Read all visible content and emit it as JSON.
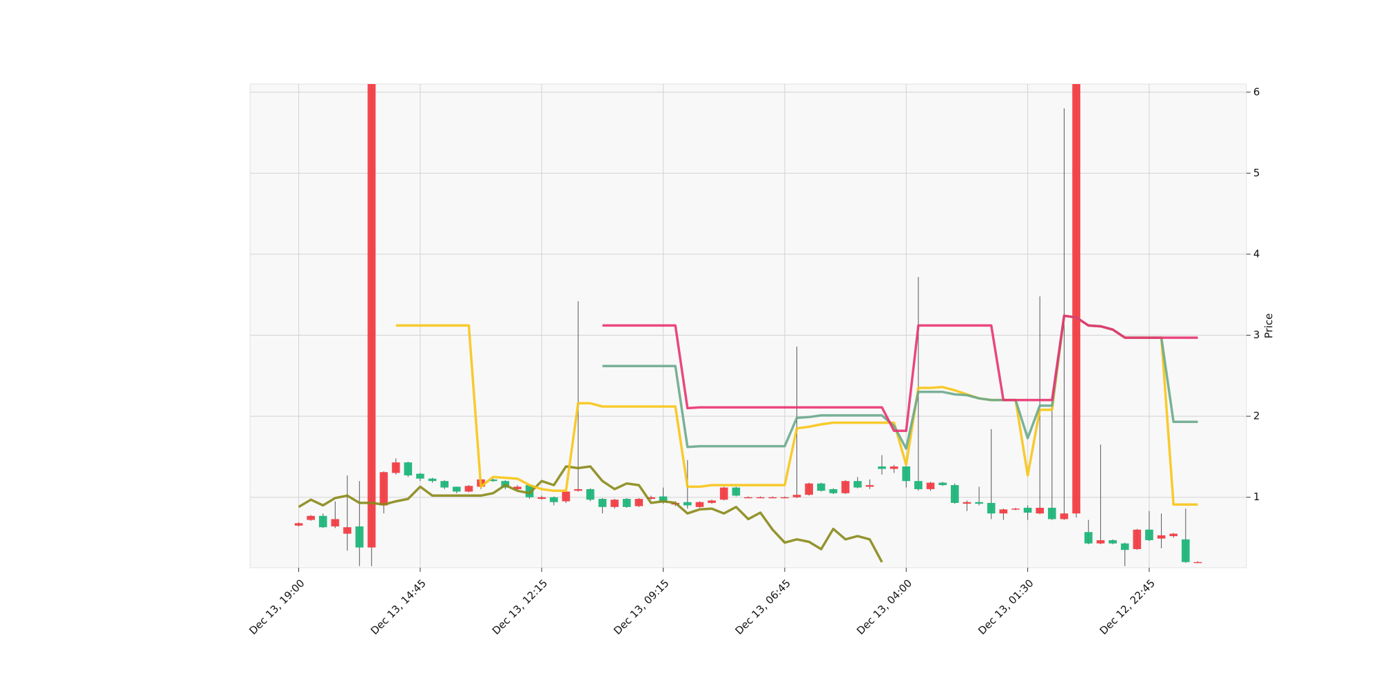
{
  "chart_data": {
    "type": "candlestick",
    "ylabel": "Price",
    "categories": [
      "Dec 13, 19:00",
      null,
      null,
      null,
      null,
      null,
      null,
      null,
      null,
      null,
      "Dec 13, 14:45",
      null,
      null,
      null,
      null,
      null,
      null,
      null,
      null,
      null,
      "Dec 13, 12:15",
      null,
      null,
      null,
      null,
      null,
      null,
      null,
      null,
      null,
      "Dec 13, 09:15",
      null,
      null,
      null,
      null,
      null,
      null,
      null,
      null,
      null,
      "Dec 13, 06:45",
      null,
      null,
      null,
      null,
      null,
      null,
      null,
      null,
      null,
      "Dec 13, 04:00",
      null,
      null,
      null,
      null,
      null,
      null,
      null,
      null,
      null,
      "Dec 13, 01:30",
      null,
      null,
      null,
      null,
      null,
      null,
      null,
      null,
      null,
      "Dec 12, 22:45",
      null,
      null,
      null,
      null
    ],
    "open": [
      0.68,
      0.77,
      0.63,
      0.73,
      0.63,
      0.38,
      8.0,
      1.31,
      1.43,
      1.27,
      1.23,
      1.2,
      1.12,
      1.07,
      1.14,
      1.22,
      1.2,
      1.12,
      1.13,
      1.0,
      1.0,
      0.94,
      1.07,
      1.1,
      0.97,
      0.88,
      0.97,
      0.88,
      0.98,
      1.0,
      0.94,
      0.93,
      0.9,
      0.94,
      0.96,
      1.12,
      1.02,
      1.0,
      1.0,
      1.0,
      1.0,
      1.03,
      1.17,
      1.08,
      1.05,
      1.2,
      1.12,
      1.15,
      1.35,
      1.38,
      1.2,
      1.1,
      1.18,
      1.15,
      0.93,
      0.94,
      0.92,
      0.8,
      0.85,
      0.86,
      0.81,
      0.87,
      0.73,
      0.8,
      8.0,
      0.43,
      0.47,
      0.43,
      0.35,
      0.6,
      0.47,
      0.53,
      0.55,
      0.2,
      0.2
    ],
    "high": [
      0.69,
      0.78,
      0.8,
      0.95,
      1.27,
      1.2,
      8.0,
      1.32,
      1.48,
      1.44,
      1.3,
      1.24,
      1.21,
      1.13,
      1.15,
      1.23,
      1.23,
      1.21,
      1.15,
      1.16,
      1.02,
      1.01,
      1.08,
      3.42,
      1.11,
      0.99,
      0.98,
      0.99,
      0.99,
      1.02,
      1.12,
      0.95,
      1.46,
      0.95,
      0.97,
      1.13,
      1.13,
      1.01,
      1.01,
      1.01,
      1.01,
      2.86,
      1.18,
      1.18,
      1.11,
      1.21,
      1.25,
      1.22,
      1.52,
      1.4,
      1.39,
      3.72,
      1.19,
      1.19,
      1.17,
      0.96,
      1.13,
      1.84,
      0.86,
      0.87,
      0.9,
      3.48,
      2.2,
      5.8,
      8.0,
      0.72,
      1.65,
      0.48,
      0.44,
      0.61,
      0.83,
      0.8,
      0.56,
      0.86,
      0.21
    ],
    "low": [
      0.64,
      0.71,
      0.62,
      0.62,
      0.34,
      0.15,
      0.15,
      0.8,
      1.28,
      1.25,
      1.2,
      1.18,
      1.1,
      1.05,
      1.06,
      1.1,
      1.19,
      1.1,
      1.09,
      0.98,
      0.97,
      0.9,
      0.93,
      1.07,
      0.95,
      0.8,
      0.86,
      0.87,
      0.88,
      0.97,
      0.92,
      0.89,
      0.86,
      0.87,
      0.92,
      0.96,
      1.01,
      0.99,
      0.99,
      0.99,
      0.99,
      0.99,
      1.02,
      1.07,
      1.04,
      1.04,
      1.11,
      1.1,
      1.28,
      1.3,
      1.12,
      1.08,
      1.08,
      1.14,
      0.92,
      0.83,
      0.9,
      0.73,
      0.72,
      0.84,
      0.72,
      0.79,
      0.72,
      0.72,
      0.75,
      0.42,
      0.42,
      0.42,
      0.15,
      0.35,
      0.46,
      0.37,
      0.5,
      0.19,
      0.19
    ],
    "close": [
      0.65,
      0.72,
      0.77,
      0.64,
      0.55,
      0.64,
      0.38,
      0.9,
      1.3,
      1.43,
      1.29,
      1.23,
      1.2,
      1.13,
      1.07,
      1.13,
      1.22,
      1.2,
      1.1,
      1.15,
      0.98,
      1.0,
      0.95,
      1.08,
      1.1,
      0.98,
      0.88,
      0.98,
      0.89,
      0.98,
      1.01,
      0.91,
      0.94,
      0.88,
      0.93,
      0.97,
      1.12,
      0.99,
      0.995,
      0.995,
      0.995,
      1.0,
      1.03,
      1.17,
      1.1,
      1.05,
      1.2,
      1.13,
      1.38,
      1.35,
      1.38,
      1.2,
      1.1,
      1.18,
      1.15,
      0.92,
      0.94,
      0.93,
      0.8,
      0.85,
      0.87,
      0.8,
      0.87,
      0.73,
      0.8,
      0.57,
      0.43,
      0.47,
      0.43,
      0.36,
      0.6,
      0.49,
      0.52,
      0.48,
      0.19
    ],
    "up_color": "#1db57a",
    "down_color": "#f23d45",
    "lines": [
      {
        "color": "#888818",
        "values": [
          0.88,
          0.97,
          0.9,
          0.99,
          1.02,
          0.93,
          0.93,
          0.91,
          0.95,
          0.98,
          1.13,
          1.02,
          1.02,
          1.02,
          1.02,
          1.02,
          1.05,
          1.15,
          1.08,
          1.05,
          1.2,
          1.15,
          1.38,
          1.36,
          1.38,
          1.2,
          1.1,
          1.17,
          1.15,
          0.93,
          0.95,
          0.93,
          0.8,
          0.85,
          0.86,
          0.8,
          0.88,
          0.73,
          0.81,
          0.6,
          0.44,
          0.48,
          0.45,
          0.36,
          0.61,
          0.48,
          0.52,
          0.48,
          0.2,
          null,
          null,
          null,
          null,
          null,
          null,
          null,
          null,
          null,
          null,
          null,
          null,
          null,
          null,
          null,
          null,
          null,
          null,
          null,
          null,
          null,
          null,
          null,
          null,
          null,
          null
        ]
      },
      {
        "color": "#f7c415",
        "values": [
          null,
          null,
          null,
          null,
          null,
          null,
          null,
          null,
          3.12,
          3.12,
          3.12,
          3.12,
          3.12,
          3.12,
          3.12,
          1.13,
          1.25,
          1.24,
          1.23,
          1.15,
          1.1,
          1.08,
          1.08,
          2.16,
          2.16,
          2.12,
          2.12,
          2.12,
          2.12,
          2.12,
          2.12,
          2.12,
          1.13,
          1.13,
          1.15,
          1.15,
          1.15,
          1.15,
          1.15,
          1.15,
          1.15,
          1.85,
          1.87,
          1.9,
          1.92,
          1.92,
          1.92,
          1.92,
          1.92,
          1.92,
          1.4,
          2.35,
          2.35,
          2.36,
          2.32,
          2.27,
          2.22,
          2.2,
          2.2,
          2.2,
          1.27,
          2.08,
          2.08,
          3.24,
          3.22,
          3.12,
          3.11,
          3.07,
          2.97,
          2.97,
          2.97,
          2.97,
          0.91,
          0.91,
          0.91
        ]
      },
      {
        "color": "#6aa88c",
        "values": [
          null,
          null,
          null,
          null,
          null,
          null,
          null,
          null,
          null,
          null,
          null,
          null,
          null,
          null,
          null,
          null,
          null,
          null,
          null,
          null,
          null,
          null,
          null,
          null,
          null,
          2.62,
          2.62,
          2.62,
          2.62,
          2.62,
          2.62,
          2.62,
          1.62,
          1.63,
          1.63,
          1.63,
          1.63,
          1.63,
          1.63,
          1.63,
          1.63,
          1.98,
          1.99,
          2.01,
          2.01,
          2.01,
          2.01,
          2.01,
          2.01,
          1.88,
          1.6,
          2.3,
          2.3,
          2.3,
          2.27,
          2.26,
          2.22,
          2.2,
          2.2,
          2.2,
          1.73,
          2.13,
          2.13,
          3.24,
          3.22,
          3.12,
          3.11,
          3.07,
          2.97,
          2.97,
          2.97,
          2.97,
          1.93,
          1.93,
          1.93
        ]
      },
      {
        "color": "#e8336f",
        "values": [
          null,
          null,
          null,
          null,
          null,
          null,
          null,
          null,
          null,
          null,
          null,
          null,
          null,
          null,
          null,
          null,
          null,
          null,
          null,
          null,
          null,
          null,
          null,
          null,
          null,
          3.12,
          3.12,
          3.12,
          3.12,
          3.12,
          3.12,
          3.12,
          2.1,
          2.11,
          2.11,
          2.11,
          2.11,
          2.11,
          2.11,
          2.11,
          2.11,
          2.11,
          2.11,
          2.11,
          2.11,
          2.11,
          2.11,
          2.11,
          2.11,
          1.82,
          1.82,
          3.12,
          3.12,
          3.12,
          3.12,
          3.12,
          3.12,
          3.12,
          2.2,
          2.2,
          2.2,
          2.2,
          2.2,
          3.24,
          3.22,
          3.12,
          3.11,
          3.07,
          2.97,
          2.97,
          2.97,
          2.97,
          2.97,
          2.97,
          2.97
        ]
      }
    ],
    "ylim": [
      0.13,
      6.1
    ],
    "yticks": [
      1,
      2,
      3,
      4,
      5,
      6
    ],
    "grid": true
  }
}
